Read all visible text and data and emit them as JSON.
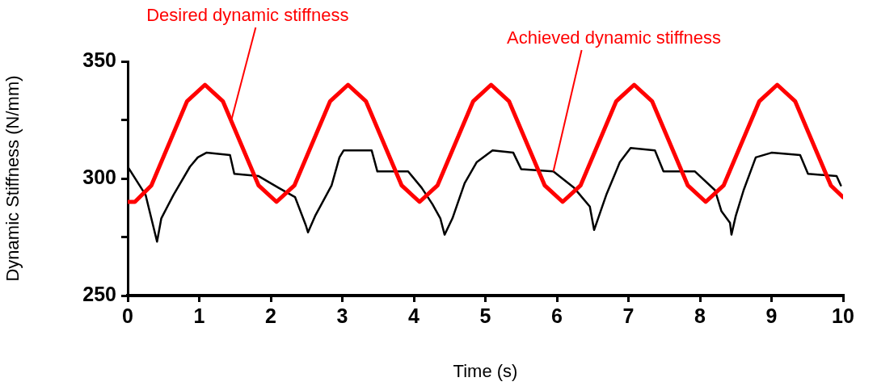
{
  "chart_data": {
    "type": "line",
    "xlabel": "Time (s)",
    "ylabel": "Dynamic Stiffness (N/mm)",
    "xlim": [
      0,
      10
    ],
    "xticks": [
      0,
      1,
      2,
      3,
      4,
      5,
      6,
      7,
      8,
      9,
      10
    ],
    "ylim": [
      250,
      350
    ],
    "yticks": [
      250,
      {
        "value": 275,
        "label": null
      },
      300,
      {
        "value": 325,
        "label": null
      },
      350
    ],
    "grid": false,
    "legend": false,
    "marker": "none",
    "line_style": "solid",
    "annotations": [
      {
        "text": "Desired dynamic stiffness",
        "x": 1.45,
        "y": 325
      },
      {
        "text": "Achieved dynamic stiffness",
        "x": 5.95,
        "y": 303
      }
    ],
    "series": [
      {
        "color": "#ff0000",
        "x": [
          0,
          0.1,
          0.33,
          0.58,
          0.83,
          1.08,
          1.33,
          1.58,
          1.83,
          2.08,
          2.33,
          2.58,
          2.83,
          3.08,
          3.33,
          3.58,
          3.83,
          4.08,
          4.33,
          4.58,
          4.83,
          5.08,
          5.33,
          5.58,
          5.83,
          6.08,
          6.33,
          6.58,
          6.83,
          7.08,
          7.33,
          7.58,
          7.83,
          8.08,
          8.33,
          8.58,
          8.83,
          9.08,
          9.33,
          9.58,
          9.83,
          10
        ],
        "values": [
          290,
          290,
          297,
          315,
          333,
          340,
          333,
          315,
          297,
          290,
          297,
          315,
          333,
          340,
          333,
          315,
          297,
          290,
          297,
          315,
          333,
          340,
          333,
          315,
          297,
          290,
          297,
          315,
          333,
          340,
          333,
          315,
          297,
          290,
          297,
          315,
          333,
          340,
          333,
          315,
          297,
          292
        ]
      },
      {
        "color": "#000000",
        "x": [
          0,
          0.25,
          0.41,
          0.47,
          0.64,
          0.87,
          0.98,
          1.1,
          1.43,
          1.49,
          1.83,
          2.11,
          2.34,
          2.49,
          2.52,
          2.62,
          2.85,
          2.96,
          3.02,
          3.41,
          3.49,
          3.92,
          4.11,
          4.26,
          4.37,
          4.43,
          4.54,
          4.71,
          4.88,
          5.1,
          5.39,
          5.5,
          5.95,
          6.24,
          6.46,
          6.52,
          6.69,
          6.88,
          7.03,
          7.37,
          7.49,
          7.93,
          8.21,
          8.3,
          8.42,
          8.44,
          8.5,
          8.61,
          8.78,
          9.0,
          9.4,
          9.51,
          9.91,
          9.97
        ],
        "values": [
          305,
          293,
          273,
          283,
          293,
          305,
          309,
          311,
          310,
          302,
          301,
          296,
          292,
          280,
          277,
          284,
          297,
          309,
          312,
          312,
          303,
          303,
          296,
          289,
          283,
          276,
          283,
          298,
          307,
          312,
          311,
          304,
          303,
          296,
          288,
          278,
          293,
          307,
          313,
          312,
          303,
          303,
          295,
          286,
          281,
          276,
          284,
          295,
          309,
          311,
          310,
          302,
          301,
          297
        ]
      }
    ]
  }
}
